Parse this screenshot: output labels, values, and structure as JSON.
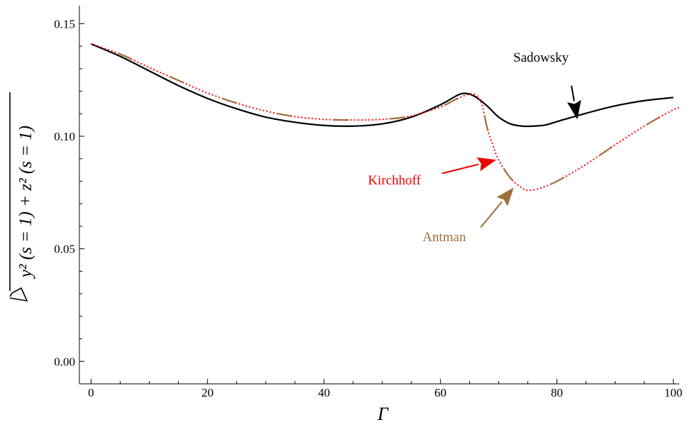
{
  "chart_data": {
    "type": "line",
    "xlabel": "Γ",
    "ylabel": "y² (s = 1) + z² (s = 1)",
    "xlim": [
      -2,
      101
    ],
    "ylim": [
      -0.01,
      0.158
    ],
    "x_ticks": [
      0,
      20,
      40,
      60,
      80,
      100
    ],
    "x_tick_labels": [
      "0",
      "20",
      "40",
      "60",
      "80",
      "100"
    ],
    "y_ticks": [
      0.0,
      0.05,
      0.1,
      0.15
    ],
    "y_tick_labels": [
      "0.00",
      "0.05",
      "0.10",
      "0.15"
    ],
    "grid": false,
    "series": [
      {
        "name": "Sadowsky",
        "color": "#000000",
        "style": "solid",
        "points": [
          [
            0,
            0.141
          ],
          [
            5,
            0.1355
          ],
          [
            10,
            0.129
          ],
          [
            15,
            0.1225
          ],
          [
            20,
            0.1168
          ],
          [
            25,
            0.1122
          ],
          [
            30,
            0.1085
          ],
          [
            35,
            0.1062
          ],
          [
            40,
            0.1048
          ],
          [
            45,
            0.1045
          ],
          [
            50,
            0.1055
          ],
          [
            55,
            0.1085
          ],
          [
            60,
            0.114
          ],
          [
            63,
            0.1183
          ],
          [
            64.5,
            0.119
          ],
          [
            66,
            0.1175
          ],
          [
            68,
            0.1135
          ],
          [
            70,
            0.1085
          ],
          [
            72,
            0.1055
          ],
          [
            74,
            0.1045
          ],
          [
            76,
            0.1045
          ],
          [
            78,
            0.105
          ],
          [
            80,
            0.1065
          ],
          [
            85,
            0.1102
          ],
          [
            90,
            0.1135
          ],
          [
            95,
            0.1158
          ],
          [
            100,
            0.1172
          ]
        ]
      },
      {
        "name": "Kirchhoff",
        "color": "#ff0000",
        "style": "dotted",
        "points": [
          [
            0,
            0.141
          ],
          [
            5,
            0.1365
          ],
          [
            10,
            0.1305
          ],
          [
            15,
            0.1248
          ],
          [
            20,
            0.1192
          ],
          [
            25,
            0.1147
          ],
          [
            30,
            0.1112
          ],
          [
            35,
            0.1087
          ],
          [
            40,
            0.1075
          ],
          [
            45,
            0.1072
          ],
          [
            50,
            0.1075
          ],
          [
            55,
            0.109
          ],
          [
            60,
            0.113
          ],
          [
            63,
            0.1168
          ],
          [
            65.5,
            0.1188
          ],
          [
            67,
            0.115
          ],
          [
            68,
            0.104
          ],
          [
            69,
            0.096
          ],
          [
            70,
            0.0895
          ],
          [
            72,
            0.0815
          ],
          [
            74,
            0.077
          ],
          [
            75,
            0.076
          ],
          [
            77,
            0.0768
          ],
          [
            80,
            0.08
          ],
          [
            85,
            0.0875
          ],
          [
            90,
            0.0962
          ],
          [
            95,
            0.1045
          ],
          [
            100,
            0.1118
          ],
          [
            101,
            0.1125
          ]
        ]
      },
      {
        "name": "Antman",
        "color": "#a0703a",
        "style": "dashed",
        "points": [
          [
            0,
            0.141
          ],
          [
            5,
            0.1365
          ],
          [
            10,
            0.1305
          ],
          [
            15,
            0.1248
          ],
          [
            20,
            0.1192
          ],
          [
            25,
            0.1147
          ],
          [
            30,
            0.1112
          ],
          [
            35,
            0.1087
          ],
          [
            40,
            0.1075
          ],
          [
            45,
            0.1072
          ],
          [
            50,
            0.1075
          ],
          [
            55,
            0.109
          ],
          [
            60,
            0.113
          ],
          [
            63,
            0.1168
          ],
          [
            65.5,
            0.1188
          ],
          [
            67,
            0.115
          ],
          [
            68,
            0.104
          ],
          [
            69,
            0.096
          ],
          [
            70,
            0.0895
          ],
          [
            72,
            0.0815
          ],
          [
            74,
            0.077
          ],
          [
            75,
            0.076
          ],
          [
            77,
            0.0768
          ],
          [
            80,
            0.08
          ],
          [
            85,
            0.0875
          ],
          [
            90,
            0.0962
          ],
          [
            95,
            0.1045
          ],
          [
            100,
            0.1118
          ],
          [
            101,
            0.1125
          ]
        ]
      }
    ],
    "annotations": [
      {
        "text": "Sadowsky",
        "color": "#000000",
        "arrow_from": [
          82.5,
          0.1225
        ],
        "arrow_to": [
          83.5,
          0.1075
        ]
      },
      {
        "text": "Kirchhoff",
        "color": "#ee0000",
        "arrow_from": [
          60.3,
          0.0835
        ],
        "arrow_to": [
          69.6,
          0.0895
        ]
      },
      {
        "text": "Antman",
        "color": "#a0703a",
        "arrow_from": [
          66.9,
          0.0595
        ],
        "arrow_to": [
          72.6,
          0.0772
        ]
      }
    ]
  }
}
